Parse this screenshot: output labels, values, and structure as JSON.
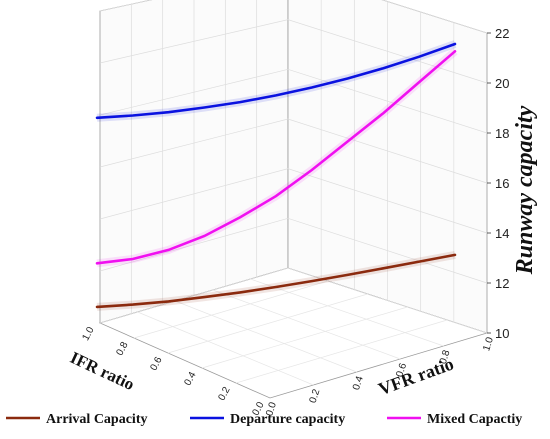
{
  "chart_data": {
    "type": "line",
    "subtype": "3d-line",
    "title": "",
    "zlabel": "Runway capacity",
    "xlabel": "VFR ratio",
    "ylabel": "IFR ratio",
    "zlim": [
      10,
      22
    ],
    "z_ticks": [
      "10",
      "12",
      "14",
      "16",
      "18",
      "20",
      "22"
    ],
    "x_ticks": [
      "0.0",
      "0.2",
      "0.4",
      "0.6",
      "0.8",
      "1.0"
    ],
    "y_ticks": [
      "1.0",
      "0.8",
      "0.6",
      "0.4",
      "0.2",
      "0.0"
    ],
    "grid": true,
    "legend_position": "bottom",
    "series": [
      {
        "name": "Arrival Capacity",
        "color": "#8B2A0E",
        "x": [
          0.0,
          0.1,
          0.2,
          0.3,
          0.4,
          0.5,
          0.6,
          0.7,
          0.8,
          0.9,
          1.0
        ],
        "values": [
          11.2,
          11.22,
          11.28,
          11.38,
          11.5,
          11.65,
          11.82,
          12.0,
          12.2,
          12.4,
          12.6
        ]
      },
      {
        "name": "Departure capacity",
        "color": "#0A12E0",
        "x": [
          0.0,
          0.1,
          0.2,
          0.3,
          0.4,
          0.5,
          0.6,
          0.7,
          0.8,
          0.9,
          1.0
        ],
        "values": [
          19.0,
          19.02,
          19.08,
          19.2,
          19.35,
          19.55,
          19.8,
          20.1,
          20.45,
          20.85,
          21.3
        ]
      },
      {
        "name": "Mixed Capactiy",
        "color": "#F010F0",
        "x": [
          0.0,
          0.1,
          0.2,
          0.3,
          0.4,
          0.5,
          0.6,
          0.7,
          0.8,
          0.9,
          1.0
        ],
        "values": [
          13.0,
          13.1,
          13.4,
          13.9,
          14.6,
          15.4,
          16.4,
          17.5,
          18.6,
          19.8,
          21.0
        ]
      }
    ]
  }
}
